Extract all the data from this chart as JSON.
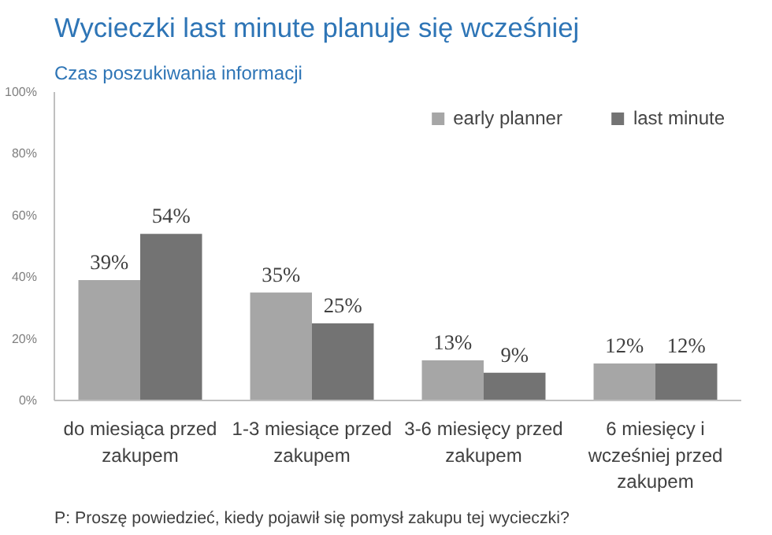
{
  "chart_data": {
    "type": "bar",
    "title": "Wycieczki last minute planuje się wcześniej",
    "subtitle": "Czas poszukiwania informacji",
    "categories": [
      "do miesiąca przed zakupem",
      "1-3 miesiące przed zakupem",
      "3-6 miesięcy przed zakupem",
      "6 miesięcy i wcześniej przed zakupem"
    ],
    "series": [
      {
        "name": "early planner",
        "color": "#a6a6a6",
        "values": [
          39,
          35,
          13,
          12
        ],
        "value_labels": [
          "39%",
          "35%",
          "13%",
          "12%"
        ]
      },
      {
        "name": "last minute",
        "color": "#737373",
        "values": [
          54,
          25,
          9,
          12
        ],
        "value_labels": [
          "54%",
          "25%",
          "9%",
          "12%"
        ]
      }
    ],
    "ylim": [
      0,
      100
    ],
    "yticks": [
      {
        "value": 0,
        "label": "0%"
      },
      {
        "value": 20,
        "label": "20%"
      },
      {
        "value": 40,
        "label": "40%"
      },
      {
        "value": 60,
        "label": "60%"
      },
      {
        "value": 80,
        "label": "80%"
      },
      {
        "value": 100,
        "label": "100%"
      }
    ],
    "grid": false,
    "legend": "top right",
    "annotations": [
      "P: Proszę powiedzieć, kiedy pojawił się pomysł zakupu tej wycieczki?"
    ]
  }
}
